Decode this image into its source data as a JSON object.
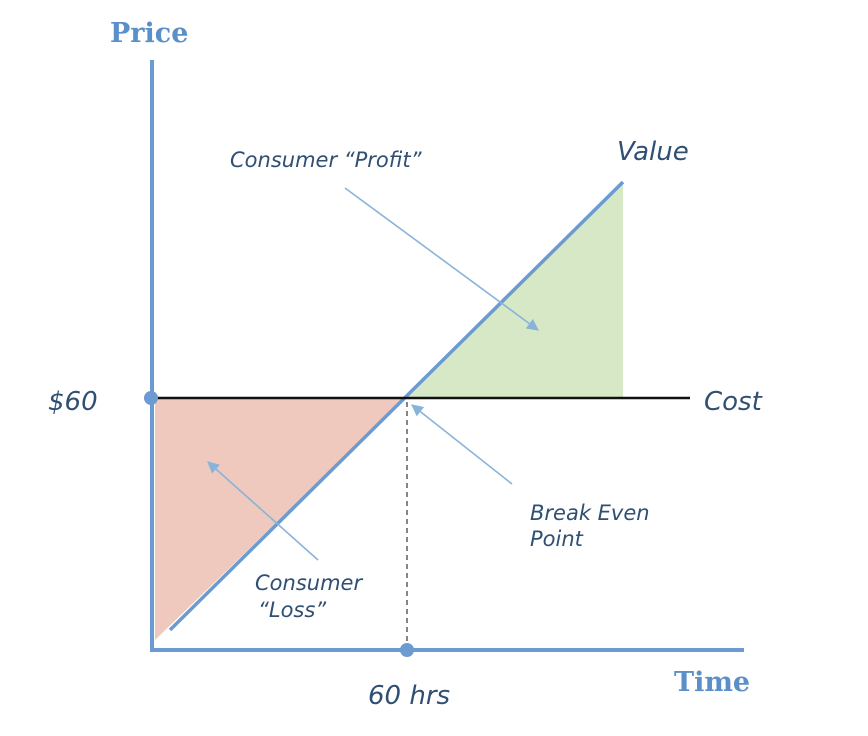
{
  "diagram": {
    "axis_y_title": "Price",
    "axis_x_title": "Time",
    "y_tick_label": "$60",
    "x_tick_label": "60 hrs",
    "value_line_label": "Value",
    "cost_line_label": "Cost",
    "profit_label": "Consumer “Profit”",
    "loss_label_line1": "Consumer",
    "loss_label_line2": "“Loss”",
    "break_even_line1": "Break Even",
    "break_even_line2": "Point"
  },
  "colors": {
    "axis": "#6b9bd1",
    "axis_title": "#5b8fc9",
    "value_line": "#6b9bd1",
    "cost_line": "#111111",
    "profit_fill": "#d7e8c7",
    "loss_fill": "#efc9bd",
    "arrow": "#8ab3da",
    "label_text": "#2f4f73",
    "dashed": "#444444"
  }
}
